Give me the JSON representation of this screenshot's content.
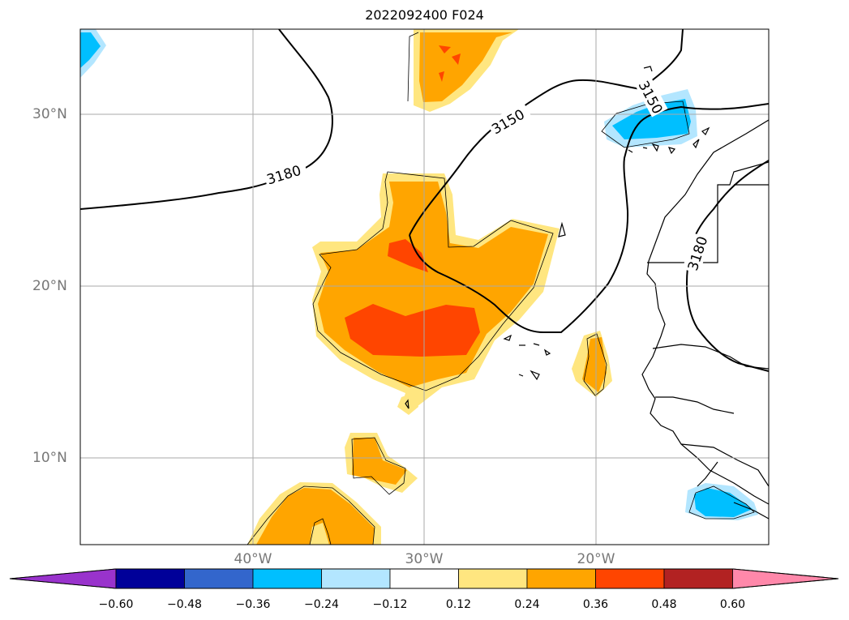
{
  "title": "2022092400 F024",
  "latitude_labels": [
    "30°N",
    "20°N",
    "10°N"
  ],
  "longitude_labels": [
    "40°W",
    "30°W",
    "20°W"
  ],
  "contour_labels": [
    "3180",
    "3150",
    "3150",
    "3180"
  ],
  "colorbar": {
    "ticks": [
      "−0.60",
      "−0.48",
      "−0.36",
      "−0.24",
      "−0.12",
      "0.12",
      "0.24",
      "0.36",
      "0.48",
      "0.60"
    ],
    "colors": [
      "#9933cc",
      "#000099",
      "#3366cc",
      "#00bfff",
      "#b3e6ff",
      "#ffffff",
      "#ffe680",
      "#ffa500",
      "#ff4500",
      "#b22222",
      "#ff88aa"
    ]
  },
  "fill_colors": {
    "light_yellow": "#ffe680",
    "orange": "#ffa500",
    "red_orange": "#ff4500",
    "cyan": "#00bfff",
    "light_blue": "#b3e6ff"
  }
}
